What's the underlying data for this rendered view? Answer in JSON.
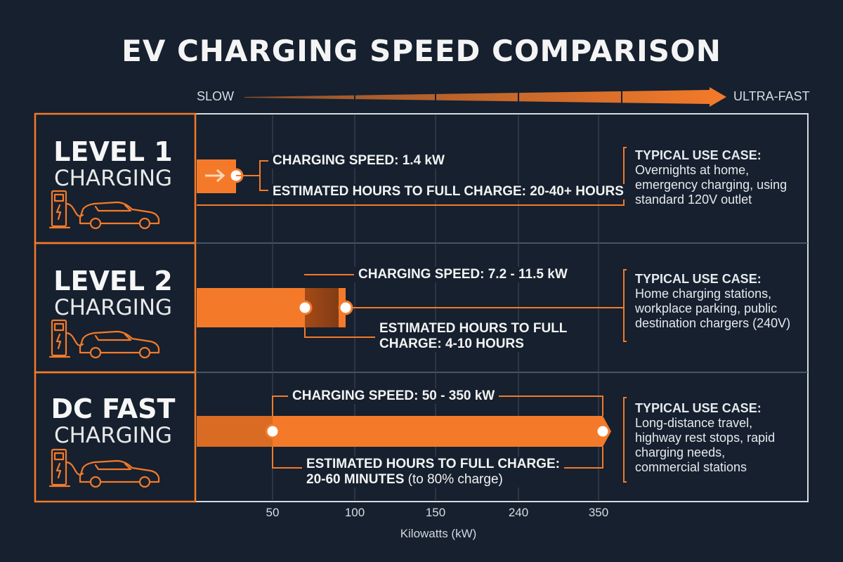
{
  "title": "EV CHARGING SPEED COMPARISON",
  "scale": {
    "slow_label": "SLOW",
    "fast_label": "ULTRA-FAST"
  },
  "levels": [
    {
      "title_big": "LEVEL 1",
      "title_small": "CHARGING",
      "speed_label": "CHARGING SPEED: 1.4 kW",
      "time_label": "ESTIMATED HOURS TO FULL CHARGE: 20-40+ HOURS",
      "time_label_lines": [],
      "use_case_heading": "TYPICAL USE CASE:",
      "use_case_lines": [
        "Overnights at home,",
        "emergency charging, using",
        "standard 120V outlet"
      ]
    },
    {
      "title_big": "LEVEL 2",
      "title_small": "CHARGING",
      "speed_label": "CHARGING SPEED: 7.2 - 11.5 kW",
      "time_label_lines": [
        "ESTIMATED HOURS TO FULL",
        "CHARGE: 4-10 HOURS"
      ],
      "use_case_heading": "TYPICAL USE CASE:",
      "use_case_lines": [
        "Home charging stations,",
        "workplace parking, public",
        "destination chargers (240V)"
      ]
    },
    {
      "title_big": "DC FAST",
      "title_small": "CHARGING",
      "speed_label": "CHARGING SPEED: 50 - 350 kW",
      "time_label_lines": [
        "ESTIMATED HOURS TO FULL CHARGE:",
        "20-60 MINUTES"
      ],
      "time_label_note": "(to 80% charge)",
      "use_case_heading": "TYPICAL USE CASE:",
      "use_case_lines": [
        "Long-distance travel,",
        "highway rest stops, rapid",
        "charging needs,",
        "commercial stations"
      ]
    }
  ],
  "chart_data": {
    "type": "bar",
    "orientation": "horizontal",
    "title": "EV CHARGING SPEED COMPARISON",
    "xlabel": "Kilowatts (kW)",
    "ylabel": "",
    "x_ticks": [
      50,
      100,
      150,
      240,
      350
    ],
    "categories": [
      "LEVEL 1 CHARGING",
      "LEVEL 2 CHARGING",
      "DC FAST CHARGING"
    ],
    "ranges_kw": [
      [
        1.4,
        1.4
      ],
      [
        7.2,
        11.5
      ],
      [
        50,
        350
      ]
    ],
    "grid": true,
    "legend": "none"
  },
  "colors": {
    "background": "#16202e",
    "accent": "#f47a2a",
    "accent_dark": "#b4511a",
    "grid": "#3a4656",
    "frame": "#d6dbe2"
  },
  "icons": [
    "charger-car-icon"
  ]
}
